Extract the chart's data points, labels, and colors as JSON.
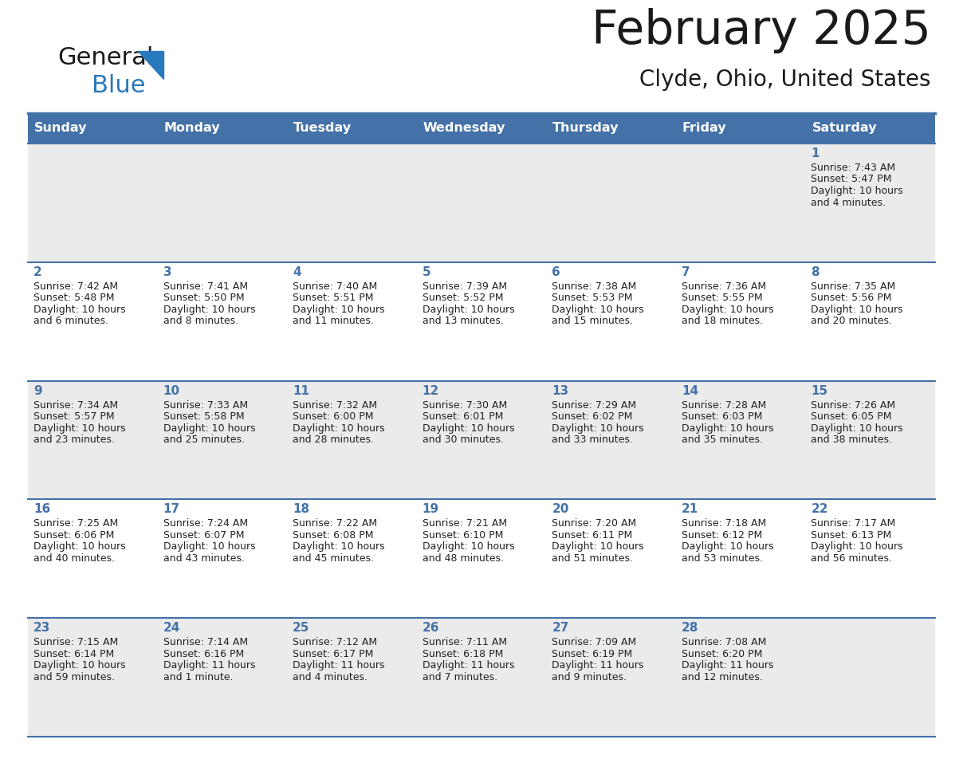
{
  "title": "February 2025",
  "subtitle": "Clyde, Ohio, United States",
  "header_bg": "#4472A8",
  "header_text_color": "#FFFFFF",
  "day_headers": [
    "Sunday",
    "Monday",
    "Tuesday",
    "Wednesday",
    "Thursday",
    "Friday",
    "Saturday"
  ],
  "row_bg_even": "#EBEBEB",
  "row_bg_odd": "#FFFFFF",
  "separator_color": "#4472A8",
  "day_num_color": "#4472A8",
  "calendar_data": [
    [
      null,
      null,
      null,
      null,
      null,
      null,
      {
        "day": "1",
        "sunrise": "7:43 AM",
        "sunset": "5:47 PM",
        "daylight1": "10 hours",
        "daylight2": "and 4 minutes."
      }
    ],
    [
      {
        "day": "2",
        "sunrise": "7:42 AM",
        "sunset": "5:48 PM",
        "daylight1": "10 hours",
        "daylight2": "and 6 minutes."
      },
      {
        "day": "3",
        "sunrise": "7:41 AM",
        "sunset": "5:50 PM",
        "daylight1": "10 hours",
        "daylight2": "and 8 minutes."
      },
      {
        "day": "4",
        "sunrise": "7:40 AM",
        "sunset": "5:51 PM",
        "daylight1": "10 hours",
        "daylight2": "and 11 minutes."
      },
      {
        "day": "5",
        "sunrise": "7:39 AM",
        "sunset": "5:52 PM",
        "daylight1": "10 hours",
        "daylight2": "and 13 minutes."
      },
      {
        "day": "6",
        "sunrise": "7:38 AM",
        "sunset": "5:53 PM",
        "daylight1": "10 hours",
        "daylight2": "and 15 minutes."
      },
      {
        "day": "7",
        "sunrise": "7:36 AM",
        "sunset": "5:55 PM",
        "daylight1": "10 hours",
        "daylight2": "and 18 minutes."
      },
      {
        "day": "8",
        "sunrise": "7:35 AM",
        "sunset": "5:56 PM",
        "daylight1": "10 hours",
        "daylight2": "and 20 minutes."
      }
    ],
    [
      {
        "day": "9",
        "sunrise": "7:34 AM",
        "sunset": "5:57 PM",
        "daylight1": "10 hours",
        "daylight2": "and 23 minutes."
      },
      {
        "day": "10",
        "sunrise": "7:33 AM",
        "sunset": "5:58 PM",
        "daylight1": "10 hours",
        "daylight2": "and 25 minutes."
      },
      {
        "day": "11",
        "sunrise": "7:32 AM",
        "sunset": "6:00 PM",
        "daylight1": "10 hours",
        "daylight2": "and 28 minutes."
      },
      {
        "day": "12",
        "sunrise": "7:30 AM",
        "sunset": "6:01 PM",
        "daylight1": "10 hours",
        "daylight2": "and 30 minutes."
      },
      {
        "day": "13",
        "sunrise": "7:29 AM",
        "sunset": "6:02 PM",
        "daylight1": "10 hours",
        "daylight2": "and 33 minutes."
      },
      {
        "day": "14",
        "sunrise": "7:28 AM",
        "sunset": "6:03 PM",
        "daylight1": "10 hours",
        "daylight2": "and 35 minutes."
      },
      {
        "day": "15",
        "sunrise": "7:26 AM",
        "sunset": "6:05 PM",
        "daylight1": "10 hours",
        "daylight2": "and 38 minutes."
      }
    ],
    [
      {
        "day": "16",
        "sunrise": "7:25 AM",
        "sunset": "6:06 PM",
        "daylight1": "10 hours",
        "daylight2": "and 40 minutes."
      },
      {
        "day": "17",
        "sunrise": "7:24 AM",
        "sunset": "6:07 PM",
        "daylight1": "10 hours",
        "daylight2": "and 43 minutes."
      },
      {
        "day": "18",
        "sunrise": "7:22 AM",
        "sunset": "6:08 PM",
        "daylight1": "10 hours",
        "daylight2": "and 45 minutes."
      },
      {
        "day": "19",
        "sunrise": "7:21 AM",
        "sunset": "6:10 PM",
        "daylight1": "10 hours",
        "daylight2": "and 48 minutes."
      },
      {
        "day": "20",
        "sunrise": "7:20 AM",
        "sunset": "6:11 PM",
        "daylight1": "10 hours",
        "daylight2": "and 51 minutes."
      },
      {
        "day": "21",
        "sunrise": "7:18 AM",
        "sunset": "6:12 PM",
        "daylight1": "10 hours",
        "daylight2": "and 53 minutes."
      },
      {
        "day": "22",
        "sunrise": "7:17 AM",
        "sunset": "6:13 PM",
        "daylight1": "10 hours",
        "daylight2": "and 56 minutes."
      }
    ],
    [
      {
        "day": "23",
        "sunrise": "7:15 AM",
        "sunset": "6:14 PM",
        "daylight1": "10 hours",
        "daylight2": "and 59 minutes."
      },
      {
        "day": "24",
        "sunrise": "7:14 AM",
        "sunset": "6:16 PM",
        "daylight1": "11 hours",
        "daylight2": "and 1 minute."
      },
      {
        "day": "25",
        "sunrise": "7:12 AM",
        "sunset": "6:17 PM",
        "daylight1": "11 hours",
        "daylight2": "and 4 minutes."
      },
      {
        "day": "26",
        "sunrise": "7:11 AM",
        "sunset": "6:18 PM",
        "daylight1": "11 hours",
        "daylight2": "and 7 minutes."
      },
      {
        "day": "27",
        "sunrise": "7:09 AM",
        "sunset": "6:19 PM",
        "daylight1": "11 hours",
        "daylight2": "and 9 minutes."
      },
      {
        "day": "28",
        "sunrise": "7:08 AM",
        "sunset": "6:20 PM",
        "daylight1": "11 hours",
        "daylight2": "and 12 minutes."
      },
      null
    ]
  ]
}
